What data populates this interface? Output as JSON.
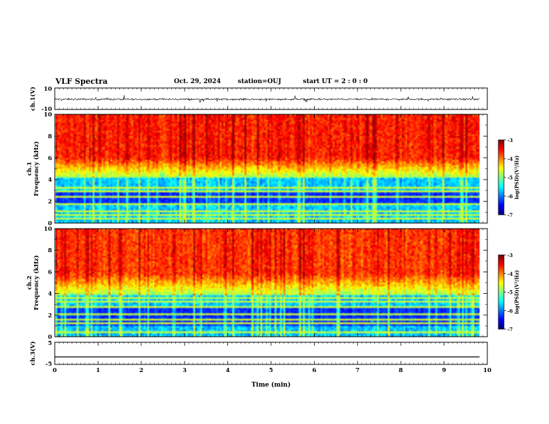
{
  "header": {
    "title": "VLF Spectra",
    "date": "Oct. 29, 2024",
    "station": "station=OUJ",
    "start": "start  UT =   2 : 0  : 0"
  },
  "chart_data": {
    "type": "heatmap",
    "xlabel": "Time (min)",
    "xlim": [
      0,
      10
    ],
    "xticks": [
      "0",
      "1",
      "2",
      "3",
      "4",
      "5",
      "6",
      "7",
      "8",
      "9",
      "10"
    ],
    "data_end_min": 9.82,
    "panels": [
      {
        "kind": "waveform",
        "ylabel": "ch.1(V)",
        "ylim": [
          -10,
          10
        ],
        "ytick_top": "10",
        "ytick_bottom": "-10",
        "baseline": -0.5,
        "noise_amplitude": 1.2
      },
      {
        "kind": "spectrogram",
        "ylabel": "ch.1\nFrequency (kHz)",
        "ylim": [
          0,
          10
        ],
        "yticks": [
          "0",
          "2",
          "4",
          "6",
          "8",
          "10"
        ],
        "colorbar": {
          "label": "log(PSD)(V²/Hz)",
          "range": [
            -7,
            -3
          ],
          "ticks": [
            "-3",
            "-4",
            "-5",
            "-6",
            "-7"
          ]
        },
        "structure": {
          "low_band_khz": [
            0,
            4.2
          ],
          "dark_band_khz": [
            1.6,
            3.0
          ],
          "transition_khz": [
            4.2,
            6.0
          ],
          "high_level": -3.6
        }
      },
      {
        "kind": "spectrogram",
        "ylabel": "ch.2\nFrequency (kHz)",
        "ylim": [
          0,
          10
        ],
        "yticks": [
          "0",
          "2",
          "4",
          "6",
          "8",
          "10"
        ],
        "colorbar": {
          "label": "log(PSD)(V²/Hz)",
          "range": [
            -7,
            -3
          ],
          "ticks": [
            "-3",
            "-4",
            "-5",
            "-6",
            "-7"
          ]
        },
        "structure": {
          "low_band_khz": [
            0,
            3.8
          ],
          "dark_band_khz": [
            1.0,
            2.6
          ],
          "transition_khz": [
            3.8,
            5.8
          ],
          "high_level": -3.7
        }
      },
      {
        "kind": "flat",
        "ylabel": "ch.3(V)",
        "ylim": [
          -5,
          5
        ],
        "ytick_top": "5",
        "ytick_bottom": "-5",
        "value": -1.6
      }
    ]
  }
}
